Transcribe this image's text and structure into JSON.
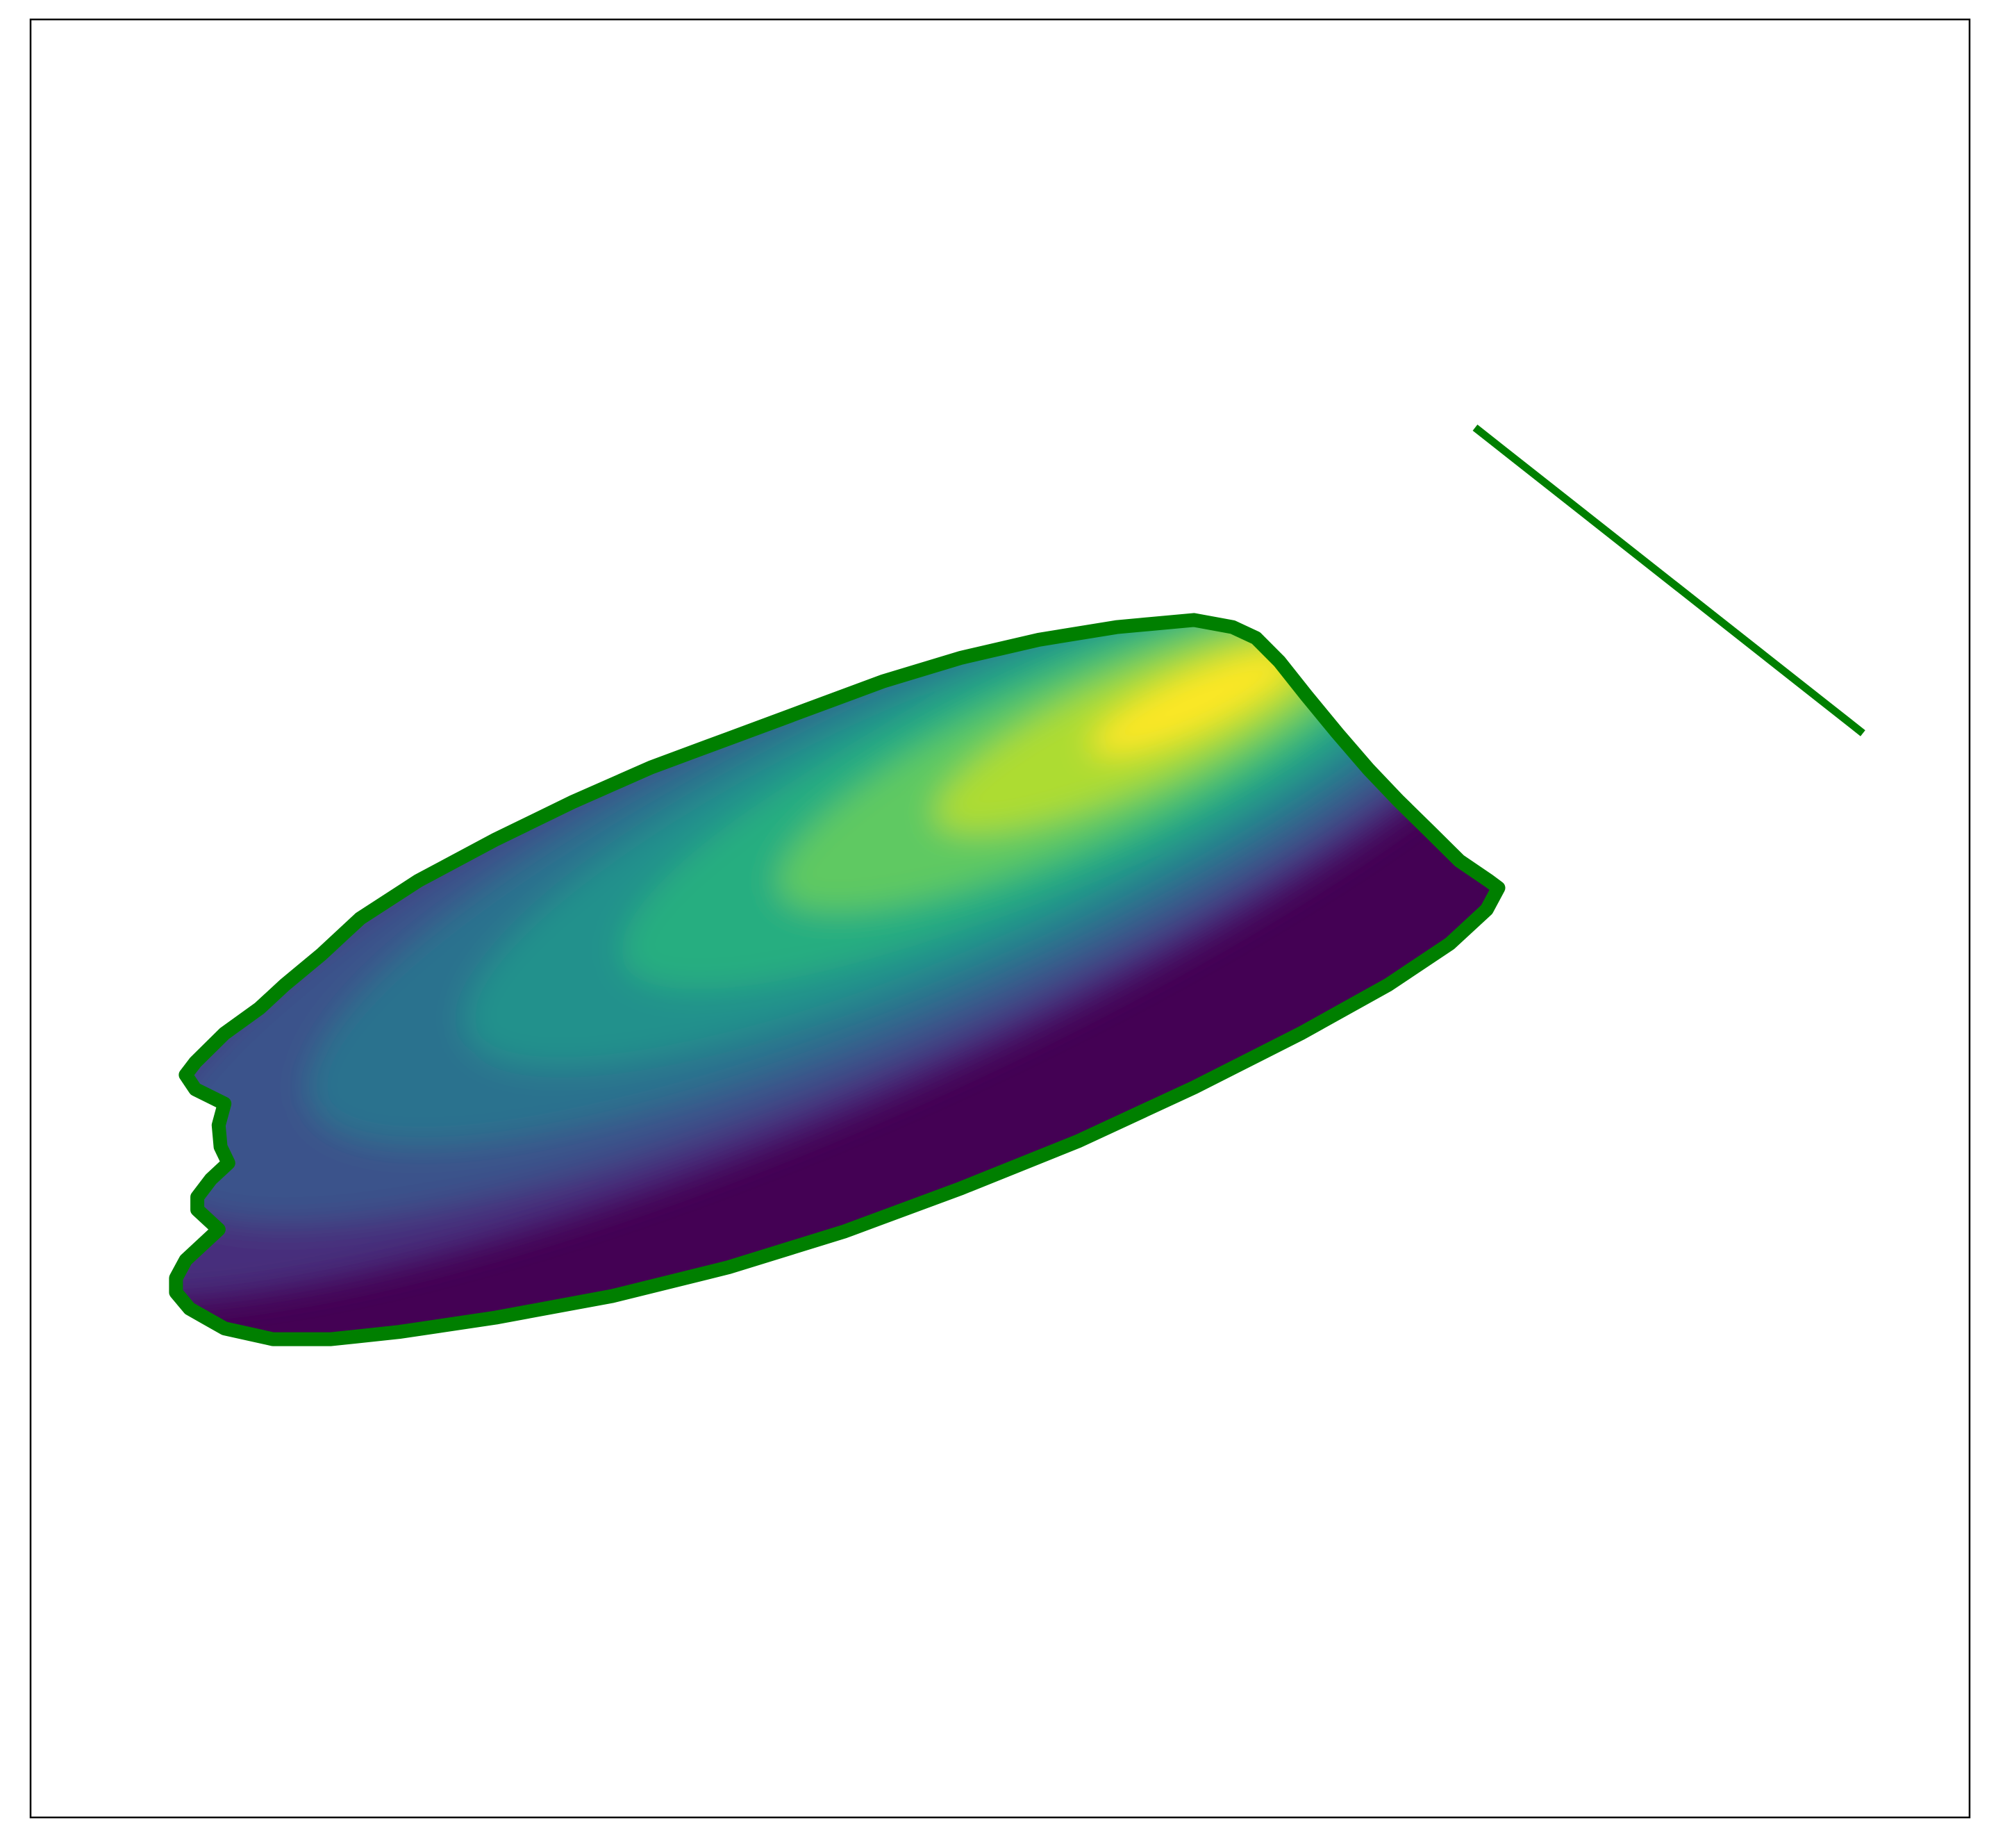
{
  "chart_data": {
    "type": "heatmap",
    "title": "",
    "xlabel": "",
    "ylabel": "",
    "xlim": [
      0,
      1
    ],
    "ylim": [
      0,
      1
    ],
    "axes_visible": false,
    "ticks_visible": false,
    "grid": false,
    "legend": "none",
    "colormap": "viridis",
    "colormap_stops": [
      "#440154",
      "#472d7b",
      "#3b528b",
      "#2c728e",
      "#21918c",
      "#28ae80",
      "#5ec962",
      "#addc30",
      "#fde725"
    ],
    "density": {
      "peak": [
        0.6,
        0.62
      ],
      "value_range": [
        0,
        1
      ]
    },
    "boundary": {
      "color": "#007f00",
      "points": [
        [
          0.08,
          0.31
        ],
        [
          0.075,
          0.3
        ],
        [
          0.075,
          0.292
        ],
        [
          0.082,
          0.283
        ],
        [
          0.1,
          0.272
        ],
        [
          0.125,
          0.266
        ],
        [
          0.155,
          0.266
        ],
        [
          0.19,
          0.27
        ],
        [
          0.24,
          0.278
        ],
        [
          0.3,
          0.29
        ],
        [
          0.36,
          0.306
        ],
        [
          0.42,
          0.326
        ],
        [
          0.48,
          0.35
        ],
        [
          0.54,
          0.376
        ],
        [
          0.6,
          0.406
        ],
        [
          0.655,
          0.436
        ],
        [
          0.7,
          0.463
        ],
        [
          0.732,
          0.486
        ],
        [
          0.751,
          0.505
        ],
        [
          0.757,
          0.517
        ],
        [
          0.752,
          0.521
        ],
        [
          0.737,
          0.532
        ],
        [
          0.722,
          0.548
        ],
        [
          0.705,
          0.566
        ],
        [
          0.69,
          0.583
        ],
        [
          0.674,
          0.603
        ],
        [
          0.658,
          0.624
        ],
        [
          0.644,
          0.643
        ],
        [
          0.632,
          0.656
        ],
        [
          0.62,
          0.662
        ],
        [
          0.6,
          0.666
        ],
        [
          0.56,
          0.662
        ],
        [
          0.52,
          0.655
        ],
        [
          0.48,
          0.645
        ],
        [
          0.44,
          0.632
        ],
        [
          0.4,
          0.616
        ],
        [
          0.36,
          0.6
        ],
        [
          0.32,
          0.584
        ],
        [
          0.28,
          0.565
        ],
        [
          0.24,
          0.544
        ],
        [
          0.2,
          0.521
        ],
        [
          0.17,
          0.5
        ],
        [
          0.15,
          0.48
        ],
        [
          0.131,
          0.463
        ],
        [
          0.118,
          0.45
        ],
        [
          0.1,
          0.436
        ],
        [
          0.085,
          0.42
        ],
        [
          0.08,
          0.413
        ],
        [
          0.085,
          0.405
        ],
        [
          0.1,
          0.397
        ],
        [
          0.097,
          0.385
        ],
        [
          0.098,
          0.373
        ],
        [
          0.102,
          0.364
        ],
        [
          0.093,
          0.355
        ],
        [
          0.086,
          0.345
        ],
        [
          0.086,
          0.338
        ],
        [
          0.097,
          0.327
        ],
        [
          0.08,
          0.31
        ]
      ]
    },
    "line": {
      "color": "#007f00",
      "x": [
        0.745,
        0.945
      ],
      "y": [
        0.773,
        0.603
      ]
    }
  }
}
